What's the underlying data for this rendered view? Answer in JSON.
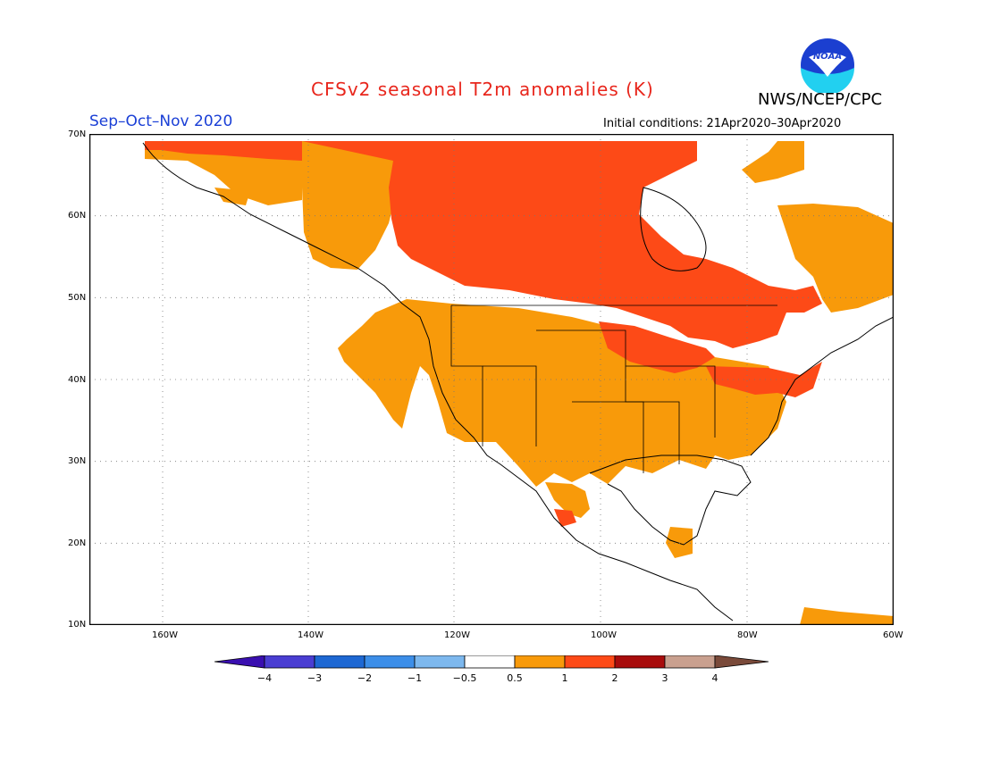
{
  "title": "CFSv2 seasonal T2m anomalies (K)",
  "organization": "NWS/NCEP/CPC",
  "logo_text": "NOAA",
  "period": "Sep–Oct–Nov 2020",
  "initial_conditions": "Initial conditions: 21Apr2020–30Apr2020",
  "map": {
    "lon_range": [
      -172,
      -60
    ],
    "lat_range": [
      10,
      70
    ],
    "lat_labels": [
      "70N",
      "60N",
      "50N",
      "40N",
      "30N",
      "20N",
      "10N"
    ],
    "lon_labels": [
      "160W",
      "140W",
      "120W",
      "100W",
      "80W",
      "60W"
    ]
  },
  "legend": {
    "tick_labels": [
      "−4",
      "−3",
      "−2",
      "−1",
      "−0.5",
      "0.5",
      "1",
      "2",
      "3",
      "4"
    ],
    "colors": [
      "#3a0fb0",
      "#4a3ed2",
      "#1e68d3",
      "#3c8ee8",
      "#7db8ee",
      "#ffffff",
      "#f89a0a",
      "#fd4a17",
      "#a80c0c",
      "#c9a08f",
      "#7a4a3a"
    ]
  },
  "anomaly_colors": {
    "plus_0_5_to_1": "#f89a0a",
    "plus_1_to_2": "#fd4a17"
  }
}
